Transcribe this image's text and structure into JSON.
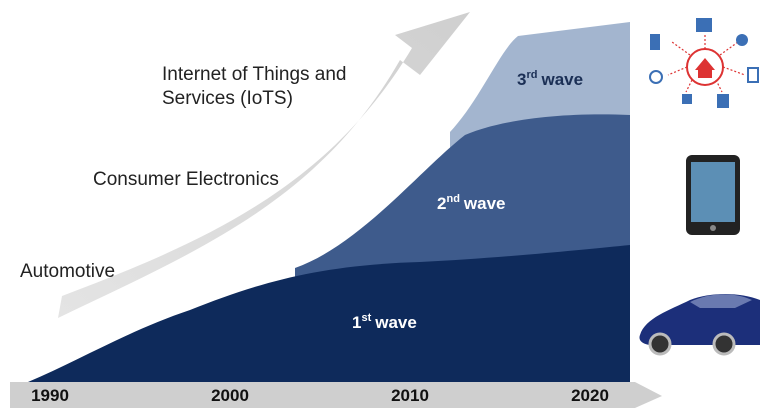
{
  "labels": [
    "Internet of Things and",
    "Services (IoTS)",
    "Consumer Electronics",
    "Automotive"
  ],
  "waves": [
    {
      "num": "1",
      "sup": "st",
      "word": "wave"
    },
    {
      "num": "2",
      "sup": "nd",
      "word": "wave"
    },
    {
      "num": "3",
      "sup": "rd",
      "word": "wave"
    }
  ],
  "years": [
    "1990",
    "2000",
    "2010",
    "2020"
  ]
}
